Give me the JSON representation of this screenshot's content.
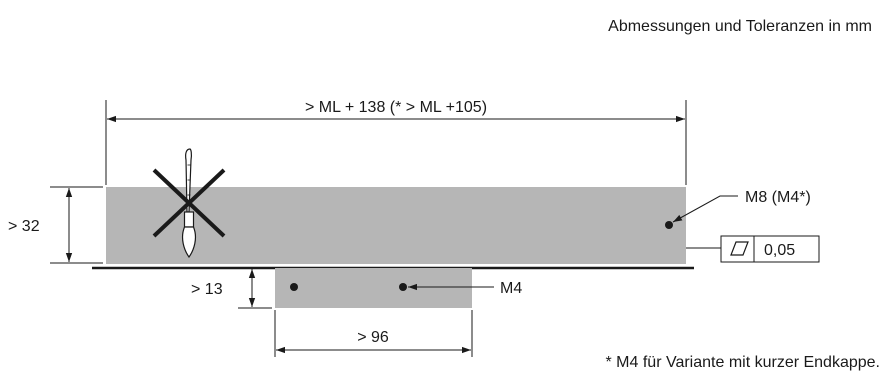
{
  "header": {
    "units_note": "Abmessungen und Toleranzen in mm"
  },
  "dimensions": {
    "overall_length": "> ML + 138 (* > ML +105)",
    "height": "> 32",
    "offset": "> 13",
    "width_bottom": "> 96"
  },
  "callouts": {
    "thread_top": "M8 (M4*)",
    "thread_bottom": "M4"
  },
  "tolerance": {
    "symbol": "flatness-icon",
    "value": "0,05"
  },
  "footnote": "* M4 für Variante mit kurzer Endkappe.",
  "colors": {
    "part_fill": "#b6b6b6",
    "line": "#1a1a1a"
  }
}
